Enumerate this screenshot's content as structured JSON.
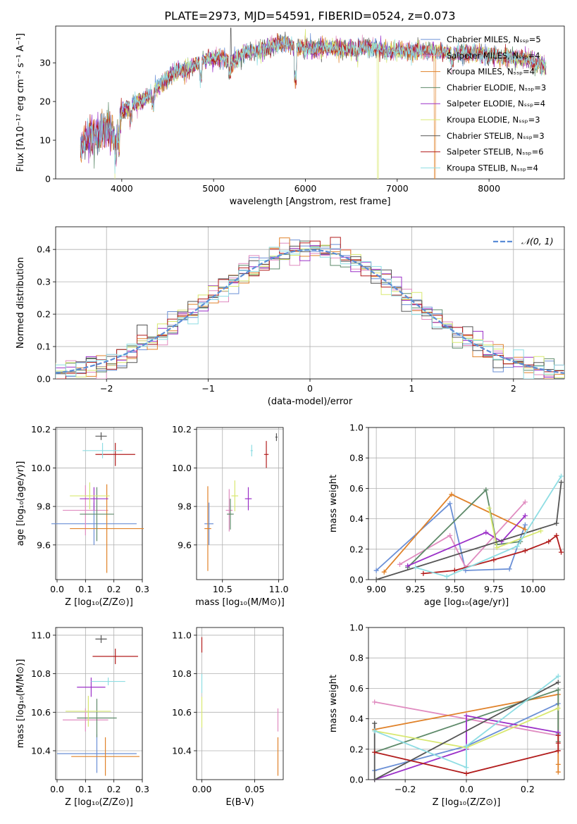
{
  "figure_title": "PLATE=2973, MJD=54591, FIBERID=0524, z=0.073",
  "chart_data": [
    {
      "type": "line",
      "panel": "spectrum",
      "title": "PLATE=2973, MJD=54591, FIBERID=0524, z=0.073",
      "xlabel": "wavelength [Angstrom, rest frame]",
      "ylabel": "Flux [fλ10⁻¹⁷ erg cm⁻² s⁻¹ A⁻¹]",
      "xlim": [
        3280,
        8820
      ],
      "ylim": [
        0,
        39.5
      ],
      "xticks": [
        4000,
        5000,
        6000,
        7000,
        8000
      ],
      "yticks": [
        0,
        10,
        20,
        30
      ],
      "grid": false,
      "legend_position": "top-right",
      "legend": [
        "Chabrier MILES, Nₛₛₚ=5",
        "Salpeter MILES, Nₛₛₚ=4",
        "Kroupa MILES, Nₛₛₚ=4",
        "Chabrier ELODIE, Nₛₛₚ=3",
        "Salpeter ELODIE, Nₛₛₚ=4",
        "Kroupa ELODIE, Nₛₛₚ=3",
        "Chabrier STELIB, Nₛₛₚ=3",
        "Salpeter STELIB, Nₛₛₚ=6",
        "Kroupa STELIB, Nₛₛₚ=4"
      ],
      "continuum": {
        "x": [
          3550,
          3650,
          3750,
          3850,
          3950,
          4000,
          4100,
          4200,
          4300,
          4400,
          4500,
          4600,
          4700,
          4800,
          4900,
          5000,
          5100,
          5200,
          5300,
          5400,
          5500,
          5600,
          5700,
          5800,
          5900,
          6000,
          6100,
          6200,
          6300,
          6400,
          6500,
          6600,
          6700,
          6800,
          6900,
          7000,
          7200,
          7400,
          7600,
          7800,
          8000,
          8200,
          8400,
          8600
        ],
        "y": [
          8,
          11,
          12,
          13,
          11,
          17,
          19,
          20,
          21,
          24,
          26,
          28,
          28,
          29.5,
          31,
          31,
          31.5,
          30,
          32,
          33,
          33,
          34,
          35,
          35,
          34,
          34,
          33.5,
          34,
          34,
          33.5,
          33.5,
          34,
          34,
          33.5,
          33,
          33,
          33,
          33,
          32.5,
          32.5,
          32,
          31.5,
          31,
          29
        ]
      }
    },
    {
      "type": "histogram",
      "panel": "residuals",
      "xlabel": "(data-model)/error",
      "ylabel": "Normed distribution",
      "xlim": [
        -2.5,
        2.5
      ],
      "ylim": [
        0,
        0.47
      ],
      "xticks": [
        -2,
        -1,
        0,
        1,
        2
      ],
      "yticks": [
        0.0,
        0.1,
        0.2,
        0.3,
        0.4
      ],
      "grid": true,
      "legend_position": "top-right",
      "legend": [
        "𝒩(0, 1)"
      ],
      "bin_width": 0.1
    },
    {
      "type": "scatter",
      "panel": "Z-age",
      "xlabel": "Z [log₁₀(Z/Z⊙)]",
      "ylabel": "age  [log₁₀(age/yr)]",
      "xlim": [
        -0.005,
        0.3
      ],
      "ylim": [
        9.42,
        10.21
      ],
      "xticks": [
        0.0,
        0.1,
        0.2,
        0.3
      ],
      "yticks": [
        9.6,
        9.8,
        10.0,
        10.2
      ],
      "grid": true,
      "points": [
        {
          "x": 0.13,
          "y": 9.71,
          "xerr": 0.15,
          "yerr": 0.11
        },
        {
          "x": 0.1,
          "y": 9.78,
          "xerr": 0.08,
          "yerr": 0.13
        },
        {
          "x": 0.175,
          "y": 9.685,
          "xerr": 0.13,
          "yerr": 0.23
        },
        {
          "x": 0.14,
          "y": 9.76,
          "xerr": 0.06,
          "yerr": 0.14
        },
        {
          "x": 0.13,
          "y": 9.84,
          "xerr": 0.05,
          "yerr": 0.06
        },
        {
          "x": 0.115,
          "y": 9.855,
          "xerr": 0.07,
          "yerr": 0.07
        },
        {
          "x": 0.155,
          "y": 10.165,
          "xerr": 0.02,
          "yerr": 0.02
        },
        {
          "x": 0.205,
          "y": 10.07,
          "xerr": 0.07,
          "yerr": 0.06
        },
        {
          "x": 0.16,
          "y": 10.09,
          "xerr": 0.07,
          "yerr": 0.04
        }
      ]
    },
    {
      "type": "scatter",
      "panel": "mass-age",
      "xlabel": "mass [log₁₀(M/M⊙)]",
      "ylabel": "",
      "xlim": [
        10.27,
        11.04
      ],
      "ylim": [
        9.42,
        10.21
      ],
      "xticks": [
        10.5,
        11.0
      ],
      "yticks": [
        9.6,
        9.8,
        10.0,
        10.2
      ],
      "grid": true,
      "points": [
        {
          "x": 10.38,
          "y": 9.71,
          "xerr": 0.04,
          "yerr": 0.11
        },
        {
          "x": 10.56,
          "y": 9.78,
          "xerr": 0.03,
          "yerr": 0.11
        },
        {
          "x": 10.37,
          "y": 9.685,
          "xerr": 0.03,
          "yerr": 0.22
        },
        {
          "x": 10.57,
          "y": 9.76,
          "xerr": 0.03,
          "yerr": 0.08
        },
        {
          "x": 10.73,
          "y": 9.84,
          "xerr": 0.03,
          "yerr": 0.06
        },
        {
          "x": 10.61,
          "y": 9.855,
          "xerr": 0.03,
          "yerr": 0.08
        },
        {
          "x": 10.98,
          "y": 10.16,
          "xerr": 0.01,
          "yerr": 0.02
        },
        {
          "x": 10.89,
          "y": 10.07,
          "xerr": 0.02,
          "yerr": 0.07
        },
        {
          "x": 10.76,
          "y": 10.09,
          "xerr": 0.01,
          "yerr": 0.03
        }
      ]
    },
    {
      "type": "line",
      "panel": "age-weight",
      "xlabel": "age  [log₁₀(age/yr)]",
      "ylabel": "mass weight",
      "xlim": [
        8.95,
        10.2
      ],
      "ylim": [
        0,
        1
      ],
      "xticks": [
        9.0,
        9.25,
        9.5,
        9.75,
        10.0
      ],
      "yticks": [
        0.0,
        0.2,
        0.4,
        0.6,
        0.8,
        1.0
      ],
      "grid": true,
      "series": [
        {
          "x": [
            9.0,
            9.47,
            9.57,
            9.85,
            9.95
          ],
          "y": [
            0.06,
            0.5,
            0.06,
            0.07,
            0.36
          ]
        },
        {
          "x": [
            9.15,
            9.47,
            9.57,
            9.95
          ],
          "y": [
            0.1,
            0.29,
            0.08,
            0.51
          ]
        },
        {
          "x": [
            9.05,
            9.48,
            9.95
          ],
          "y": [
            0.05,
            0.56,
            0.33
          ]
        },
        {
          "x": [
            9.2,
            9.7,
            9.77,
            9.92
          ],
          "y": [
            0.08,
            0.59,
            0.23,
            0.25
          ]
        },
        {
          "x": [
            9.2,
            9.7,
            9.8,
            9.95
          ],
          "y": [
            0.09,
            0.31,
            0.25,
            0.42
          ]
        },
        {
          "x": [
            9.72,
            9.77,
            10.05
          ],
          "y": [
            0.47,
            0.21,
            0.32
          ]
        },
        {
          "x": [
            9.0,
            10.15,
            10.18
          ],
          "y": [
            0.0,
            0.37,
            0.64
          ]
        },
        {
          "x": [
            9.3,
            9.5,
            9.75,
            9.95,
            10.1,
            10.15,
            10.18
          ],
          "y": [
            0.04,
            0.06,
            0.13,
            0.19,
            0.25,
            0.29,
            0.18
          ]
        },
        {
          "x": [
            9.25,
            9.45,
            9.9,
            10.18
          ],
          "y": [
            0.08,
            0.02,
            0.22,
            0.68
          ]
        }
      ]
    },
    {
      "type": "scatter",
      "panel": "Z-mass",
      "xlabel": "Z [log₁₀(Z/Z⊙)]",
      "ylabel": "mass [log₁₀(M/M⊙)]",
      "xlim": [
        -0.005,
        0.3
      ],
      "ylim": [
        10.25,
        11.04
      ],
      "xticks": [
        0.0,
        0.1,
        0.2,
        0.3
      ],
      "yticks": [
        10.4,
        10.6,
        10.8,
        11.0
      ],
      "grid": true,
      "points": [
        {
          "x": 0.14,
          "y": 10.385,
          "xerr": 0.14,
          "yerr": 0.1
        },
        {
          "x": 0.1,
          "y": 10.56,
          "xerr": 0.08,
          "yerr": 0.06
        },
        {
          "x": 0.17,
          "y": 10.37,
          "xerr": 0.12,
          "yerr": 0.1
        },
        {
          "x": 0.14,
          "y": 10.57,
          "xerr": 0.07,
          "yerr": 0.1
        },
        {
          "x": 0.12,
          "y": 10.73,
          "xerr": 0.05,
          "yerr": 0.05
        },
        {
          "x": 0.11,
          "y": 10.605,
          "xerr": 0.08,
          "yerr": 0.08
        },
        {
          "x": 0.155,
          "y": 10.98,
          "xerr": 0.02,
          "yerr": 0.02
        },
        {
          "x": 0.205,
          "y": 10.89,
          "xerr": 0.08,
          "yerr": 0.04
        },
        {
          "x": 0.18,
          "y": 10.76,
          "xerr": 0.06,
          "yerr": 0.02
        }
      ]
    },
    {
      "type": "scatter",
      "panel": "EBV-mass",
      "xlabel": "E(B-V)",
      "ylabel": "",
      "xlim": [
        -0.005,
        0.077
      ],
      "ylim": [
        10.25,
        11.04
      ],
      "xticks": [
        0.0,
        0.05
      ],
      "yticks": [
        10.4,
        10.6,
        10.8,
        11.0
      ],
      "grid": true,
      "points": [
        {
          "x": 0.0,
          "y": 10.75,
          "yerr": 0.05
        },
        {
          "x": 0.0,
          "y": 10.6,
          "yerr": 0.08
        },
        {
          "x": 0.0,
          "y": 10.95,
          "yerr": 0.04
        },
        {
          "x": 0.072,
          "y": 10.56,
          "yerr": 0.06
        },
        {
          "x": 0.072,
          "y": 10.37,
          "yerr": 0.1
        }
      ]
    },
    {
      "type": "line",
      "panel": "Z-weight",
      "xlabel": "Z [log₁₀(Z/Z⊙)]",
      "ylabel": "mass weight",
      "xlim": [
        -0.32,
        0.32
      ],
      "ylim": [
        0,
        1
      ],
      "xticks": [
        -0.2,
        0.0,
        0.2
      ],
      "yticks": [
        0.0,
        0.2,
        0.4,
        0.6,
        0.8,
        1.0
      ],
      "grid": true,
      "series": [
        {
          "x": [
            -0.3,
            0.0,
            0.3,
            0.3
          ],
          "y": [
            0.06,
            0.22,
            0.5,
            0.3
          ]
        },
        {
          "x": [
            -0.3,
            0.3
          ],
          "y": [
            0.51,
            0.29
          ]
        },
        {
          "x": [
            -0.3,
            0.3,
            0.3,
            0.3
          ],
          "y": [
            0.33,
            0.56,
            0.1,
            0.05
          ]
        },
        {
          "x": [
            -0.3,
            0.3,
            0.3
          ],
          "y": [
            0.18,
            0.59,
            0.25
          ]
        },
        {
          "x": [
            -0.3,
            0.0,
            0.0,
            0.3
          ],
          "y": [
            0.0,
            0.2,
            0.42,
            0.31
          ]
        },
        {
          "x": [
            -0.3,
            0.0,
            0.3
          ],
          "y": [
            0.32,
            0.21,
            0.47
          ]
        },
        {
          "x": [
            -0.3,
            -0.3,
            0.3
          ],
          "y": [
            0.37,
            0.0,
            0.64
          ]
        },
        {
          "x": [
            -0.3,
            0.0,
            0.3,
            0.3,
            0.3
          ],
          "y": [
            0.18,
            0.04,
            0.19,
            0.29,
            0.24
          ]
        },
        {
          "x": [
            -0.3,
            0.0,
            0.0,
            0.3
          ],
          "y": [
            0.32,
            0.08,
            0.22,
            0.68
          ]
        }
      ]
    }
  ],
  "colors": [
    "#6a8fd6",
    "#e08bc0",
    "#e0822a",
    "#5e8a6a",
    "#9b30c8",
    "#d8e870",
    "#555555",
    "#b21d1d",
    "#8edde3"
  ],
  "gaussian_color": "#5b8dd6"
}
